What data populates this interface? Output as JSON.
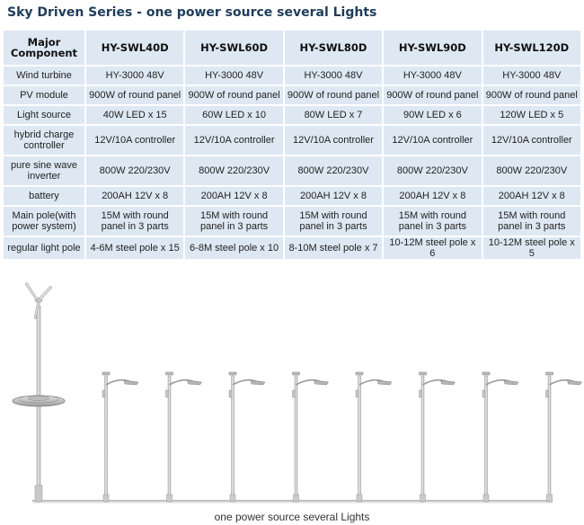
{
  "title": "Sky Driven Series - one power source several Lights",
  "table": {
    "header": [
      "Major Component",
      "HY-SWL40D",
      "HY-SWL60D",
      "HY-SWL80D",
      "HY-SWL90D",
      "HY-SWL120D"
    ],
    "rows": [
      {
        "label": "Wind turbine",
        "cells": [
          "HY-3000 48V",
          "HY-3000 48V",
          "HY-3000 48V",
          "HY-3000 48V",
          "HY-3000 48V"
        ]
      },
      {
        "label": "PV module",
        "cells": [
          "900W of round panel",
          "900W of round panel",
          "900W of round panel",
          "900W of round panel",
          "900W of round panel"
        ]
      },
      {
        "label": "Light source",
        "cells": [
          "40W LED x 15",
          "60W LED x 10",
          "80W LED x 7",
          "90W LED x 6",
          "120W LED x 5"
        ]
      },
      {
        "label": "hybrid charge controller",
        "cells": [
          "12V/10A controller",
          "12V/10A controller",
          "12V/10A controller",
          "12V/10A controller",
          "12V/10A controller"
        ]
      },
      {
        "label": "pure sine wave inverter",
        "cells": [
          "800W 220/230V",
          "800W 220/230V",
          "800W 220/230V",
          "800W 220/230V",
          "800W 220/230V"
        ]
      },
      {
        "label": "battery",
        "cells": [
          "200AH 12V x 8",
          "200AH 12V x 8",
          "200AH 12V x 8",
          "200AH 12V x 8",
          "200AH 12V x 8"
        ]
      },
      {
        "label": "Main pole(with power system)",
        "cells": [
          "15M with round panel in 3 parts",
          "15M with round panel in 3 parts",
          "15M with round panel in 3 parts",
          "15M with round panel in 3 parts",
          "15M with round panel in 3 parts"
        ]
      },
      {
        "label": "regular light pole",
        "cells": [
          "4-6M steel pole x 15",
          "6-8M steel pole x 10",
          "8-10M steel pole x 7",
          "10-12M steel pole x 6",
          "10-12M steel pole x 5"
        ]
      }
    ]
  },
  "scene": {
    "main_pole": "wind-turbine-pole-with-round-solar-panel",
    "light_pole_count": 8,
    "cable_color": "#9a9a9a",
    "pole_color": "#c8c8c8"
  },
  "caption": "one power source several Lights"
}
